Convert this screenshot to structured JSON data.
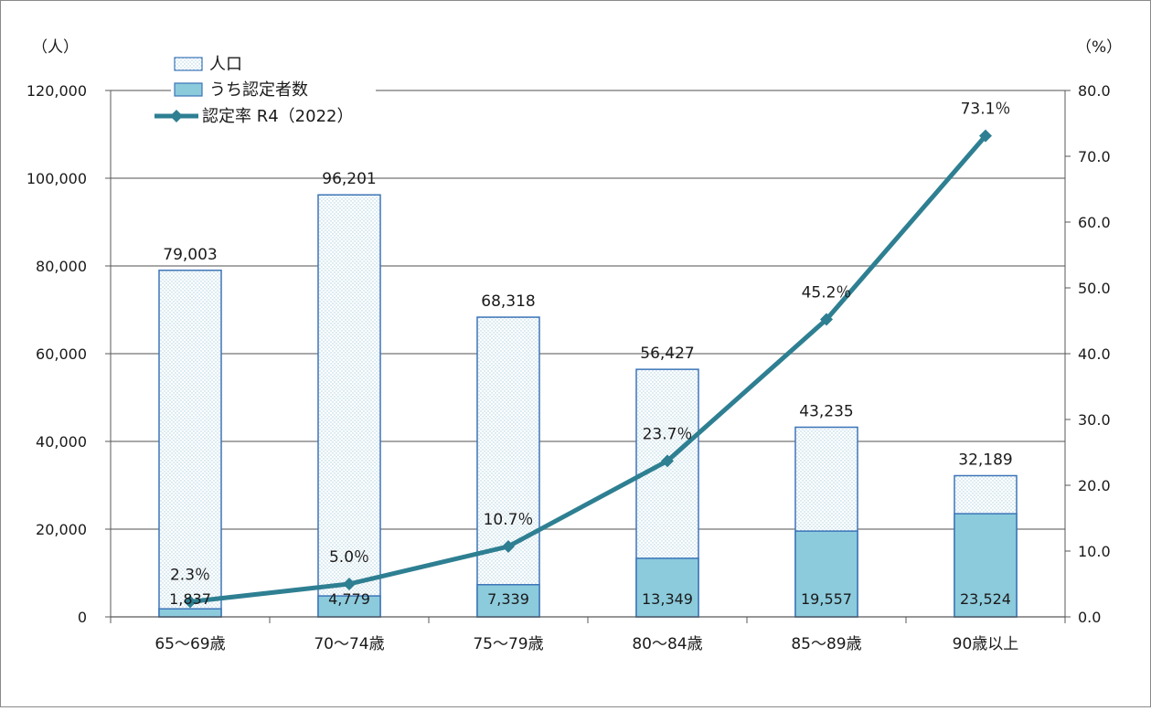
{
  "colors": {
    "population_fill": "#ffffff",
    "population_dots": "#a9cfe0",
    "bar_border": "#3b74b8",
    "certified_fill": "#8ccbdc",
    "rate_line": "#2e7f92",
    "grid": "#8c8c8c",
    "axis": "#595959"
  },
  "chart_data": {
    "type": "bar",
    "categories": [
      "65～69歳",
      "70～74歳",
      "75～79歳",
      "80～84歳",
      "85～89歳",
      "90歳以上"
    ],
    "series": [
      {
        "name": "人口",
        "kind": "bar",
        "axis": "left",
        "values": [
          79003,
          96201,
          68318,
          56427,
          43235,
          32189
        ],
        "labels": [
          "79,003",
          "96,201",
          "68,318",
          "56,427",
          "43,235",
          "32,189"
        ]
      },
      {
        "name": "うち認定者数",
        "kind": "bar",
        "axis": "left",
        "values": [
          1837,
          4779,
          7339,
          13349,
          19557,
          23524
        ],
        "labels": [
          "1,837",
          "4,779",
          "7,339",
          "13,349",
          "19,557",
          "23,524"
        ]
      },
      {
        "name": "認定率 R4（2022）",
        "kind": "line",
        "axis": "right",
        "values": [
          2.3,
          5.0,
          10.7,
          23.7,
          45.2,
          73.1
        ],
        "labels": [
          "2.3％",
          "5.0％",
          "10.7％",
          "23.7％",
          "45.2％",
          "73.1％"
        ]
      }
    ],
    "yleft": {
      "label": "（人）",
      "lim": [
        0,
        120000
      ],
      "ticks": [
        "0",
        "20,000",
        "40,000",
        "60,000",
        "80,000",
        "100,000",
        "120,000"
      ]
    },
    "yright": {
      "label": "（%）",
      "lim": [
        0,
        80
      ],
      "ticks": [
        "0.0",
        "10.0",
        "20.0",
        "30.0",
        "40.0",
        "50.0",
        "60.0",
        "70.0",
        "80.0"
      ]
    },
    "grid": true,
    "legend_position": "top-left"
  }
}
